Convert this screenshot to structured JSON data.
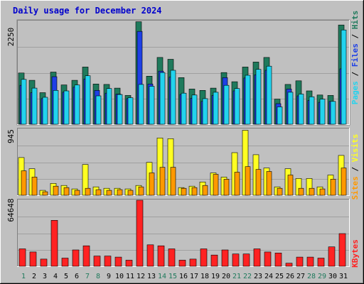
{
  "chart_data": [
    {
      "type": "bar",
      "title": "Daily usage for December 2024",
      "categories": [
        "1",
        "2",
        "3",
        "4",
        "5",
        "6",
        "7",
        "8",
        "9",
        "10",
        "11",
        "12",
        "13",
        "14",
        "15",
        "16",
        "17",
        "18",
        "19",
        "20",
        "21",
        "22",
        "23",
        "24",
        "25",
        "26",
        "27",
        "28",
        "29",
        "30",
        "31"
      ],
      "weekend_days": [
        "1",
        "7",
        "8",
        "14",
        "15",
        "21",
        "22",
        "28",
        "29"
      ],
      "ylim": [
        0,
        2250
      ],
      "max_label": "2250",
      "series": [
        {
          "name": "Hits",
          "color": "#1f7a5c",
          "values": [
            1120,
            960,
            690,
            1140,
            860,
            960,
            1250,
            880,
            870,
            790,
            630,
            2240,
            1050,
            1460,
            1420,
            1020,
            770,
            740,
            790,
            1130,
            930,
            1250,
            1360,
            1460,
            550,
            870,
            950,
            730,
            640,
            630,
            2170
          ]
        },
        {
          "name": "Files",
          "color": "#1e40e6",
          "values": [
            850,
            690,
            560,
            1040,
            700,
            810,
            990,
            740,
            680,
            660,
            560,
            2030,
            880,
            1160,
            1030,
            650,
            570,
            500,
            630,
            1020,
            730,
            1010,
            1080,
            1180,
            450,
            770,
            620,
            520,
            480,
            500,
            1210
          ]
        },
        {
          "name": "Pages",
          "color": "#22d3ee",
          "values": [
            980,
            790,
            590,
            740,
            730,
            860,
            1060,
            620,
            780,
            650,
            580,
            870,
            830,
            1130,
            1180,
            680,
            640,
            560,
            700,
            850,
            780,
            1070,
            1200,
            1270,
            380,
            700,
            660,
            600,
            550,
            500,
            2060
          ]
        }
      ],
      "legend_labels": {
        "pages": "Pages",
        "files": "Files",
        "hits": "Hits",
        "sep1": " / ",
        "sep2": " / "
      }
    },
    {
      "type": "bar",
      "categories": [
        "1",
        "2",
        "3",
        "4",
        "5",
        "6",
        "7",
        "8",
        "9",
        "10",
        "11",
        "12",
        "13",
        "14",
        "15",
        "16",
        "17",
        "18",
        "19",
        "20",
        "21",
        "22",
        "23",
        "24",
        "25",
        "26",
        "27",
        "28",
        "29",
        "30",
        "31"
      ],
      "ylim": [
        0,
        945
      ],
      "max_label": "945",
      "series": [
        {
          "name": "Visits",
          "color": "#ffff22",
          "values": [
            540,
            380,
            70,
            170,
            140,
            90,
            440,
            120,
            100,
            100,
            90,
            140,
            470,
            820,
            810,
            110,
            130,
            190,
            320,
            260,
            610,
            930,
            580,
            390,
            120,
            380,
            240,
            240,
            120,
            290,
            570
          ]
        },
        {
          "name": "Sites",
          "color": "#ff9900",
          "values": [
            350,
            260,
            50,
            130,
            110,
            70,
            100,
            80,
            70,
            80,
            70,
            120,
            320,
            400,
            400,
            100,
            110,
            140,
            300,
            230,
            330,
            410,
            370,
            340,
            100,
            290,
            100,
            100,
            90,
            230,
            390
          ]
        }
      ],
      "legend_labels": {
        "sites": "Sites",
        "visits": "Visits",
        "sep": " / "
      }
    },
    {
      "type": "bar",
      "categories": [
        "1",
        "2",
        "3",
        "4",
        "5",
        "6",
        "7",
        "8",
        "9",
        "10",
        "11",
        "12",
        "13",
        "14",
        "15",
        "16",
        "17",
        "18",
        "19",
        "20",
        "21",
        "22",
        "23",
        "24",
        "25",
        "26",
        "27",
        "28",
        "29",
        "30",
        "31"
      ],
      "ylim": [
        0,
        64648
      ],
      "max_label": "64648",
      "series": [
        {
          "name": "KBytes",
          "color": "#ff2222",
          "values": [
            17000,
            14000,
            7000,
            45000,
            8000,
            16000,
            20000,
            10000,
            10000,
            9000,
            6000,
            64648,
            21000,
            20000,
            17000,
            6000,
            7000,
            17000,
            11000,
            16000,
            12000,
            12000,
            17000,
            14000,
            13000,
            3000,
            9000,
            9000,
            8000,
            19000,
            32000
          ]
        }
      ],
      "legend_labels": {
        "kbytes": "KBytes"
      }
    }
  ]
}
